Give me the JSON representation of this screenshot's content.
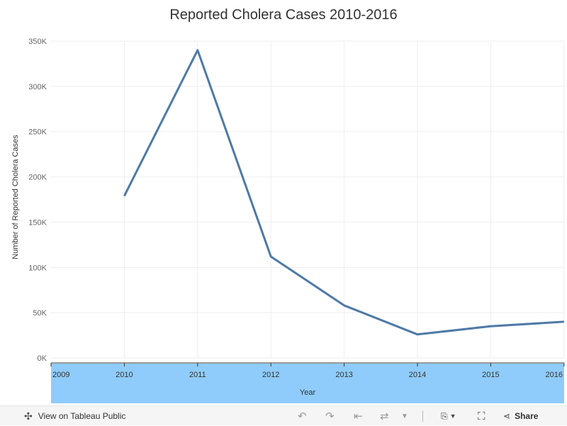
{
  "chart_data": {
    "type": "line",
    "title": "Reported Cholera Cases 2010-2016",
    "xlabel": "Year",
    "ylabel": "Number of Reported Cholera Cases",
    "x_ticks": [
      "2009",
      "2010",
      "2011",
      "2012",
      "2013",
      "2014",
      "2015",
      "2016"
    ],
    "y_ticks": [
      "350K",
      "300K",
      "250K",
      "200K",
      "150K",
      "100K",
      "50K",
      "0K"
    ],
    "ylim": [
      0,
      350000
    ],
    "series": [
      {
        "x": [
          2010,
          2011,
          2012,
          2013,
          2014,
          2015,
          2016
        ],
        "values": [
          179000,
          340000,
          112000,
          58000,
          26000,
          35000,
          40000
        ],
        "color": "#4e79a7"
      }
    ],
    "x_axis_band_color": "#8fccfb",
    "grid": true
  },
  "toolbar": {
    "view_label": "View on Tableau Public",
    "share_label": "Share",
    "icons": [
      "tableau-logo-icon",
      "undo-icon",
      "redo-icon",
      "revert-icon",
      "refresh-icon",
      "download-icon",
      "fullscreen-icon",
      "share-icon"
    ]
  }
}
